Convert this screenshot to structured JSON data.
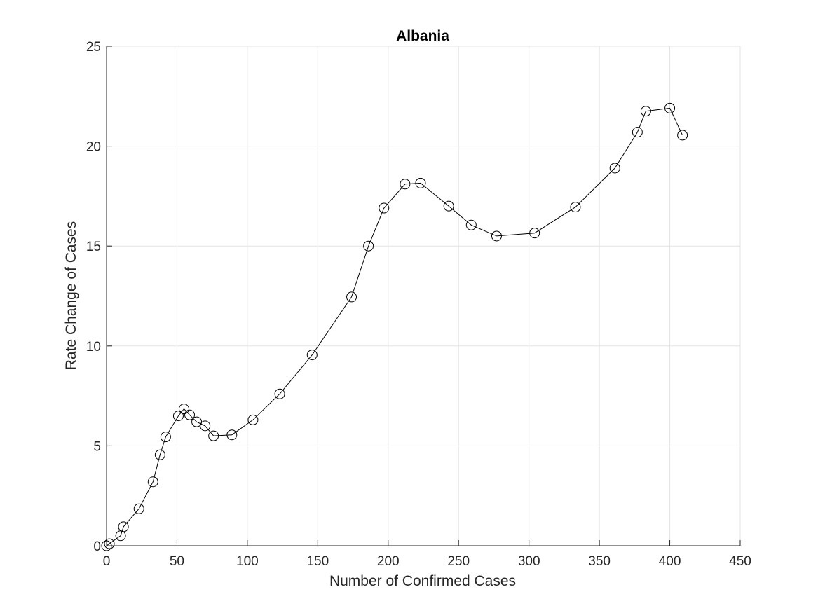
{
  "chart_data": {
    "type": "line",
    "title": "Albania",
    "xlabel": "Number of Confirmed Cases",
    "ylabel": "Rate Change of Cases",
    "xlim": [
      0,
      450
    ],
    "ylim": [
      0,
      25
    ],
    "xticks": [
      0,
      50,
      100,
      150,
      200,
      250,
      300,
      350,
      400,
      450
    ],
    "yticks": [
      0,
      5,
      10,
      15,
      20,
      25
    ],
    "grid": true,
    "line_color": "#000000",
    "marker": "open-circle",
    "series": [
      {
        "x": [
          0,
          2,
          10,
          12,
          23,
          33,
          38,
          42,
          51,
          55,
          59,
          64,
          70,
          76,
          89,
          104,
          123,
          146,
          174,
          186,
          197,
          212,
          223,
          243,
          259,
          277,
          304,
          333,
          361,
          377,
          383,
          400,
          409
        ],
        "y": [
          0,
          0.1,
          0.5,
          0.95,
          1.85,
          3.2,
          4.55,
          5.45,
          6.5,
          6.85,
          6.55,
          6.2,
          6.0,
          5.5,
          5.55,
          6.3,
          7.6,
          9.55,
          12.45,
          15.0,
          16.9,
          18.1,
          18.15,
          17.0,
          16.05,
          15.5,
          15.65,
          16.95,
          18.9,
          20.7,
          21.75,
          21.9,
          20.55
        ]
      }
    ]
  }
}
